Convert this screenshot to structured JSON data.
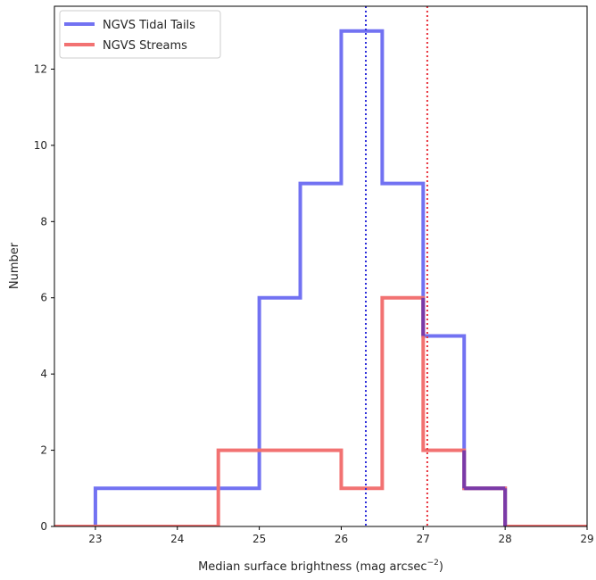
{
  "chart_data": {
    "type": "histogram-step",
    "xlabel": "Median surface brightness (mag arcsec",
    "xlabel_sup": "−2",
    "xlabel_close": ")",
    "ylabel": "Number",
    "xlim": [
      22.5,
      29
    ],
    "ylim": [
      0,
      13.65
    ],
    "xticks": [
      23,
      24,
      25,
      26,
      27,
      28,
      29
    ],
    "yticks": [
      0,
      2,
      4,
      6,
      8,
      10,
      12
    ],
    "bin_edges": [
      22.5,
      23.0,
      23.5,
      24.0,
      24.5,
      25.0,
      25.5,
      26.0,
      26.5,
      27.0,
      27.5,
      28.0,
      28.5,
      29.0
    ],
    "series": [
      {
        "name": "NGVS Tidal Tails",
        "color": "#7272f2",
        "counts": [
          0,
          1,
          1,
          1,
          1,
          6,
          9,
          13,
          9,
          5,
          1,
          0,
          0
        ],
        "median": 26.3,
        "median_color": "#2b2bd9"
      },
      {
        "name": "NGVS Streams",
        "color": "#f27272",
        "counts": [
          0,
          0,
          0,
          0,
          2,
          2,
          2,
          1,
          6,
          2,
          1,
          0,
          0
        ],
        "median": 27.05,
        "median_color": "#e8303a"
      }
    ],
    "overlap_color": "#7a3aa8",
    "legend_position": "upper-left"
  }
}
